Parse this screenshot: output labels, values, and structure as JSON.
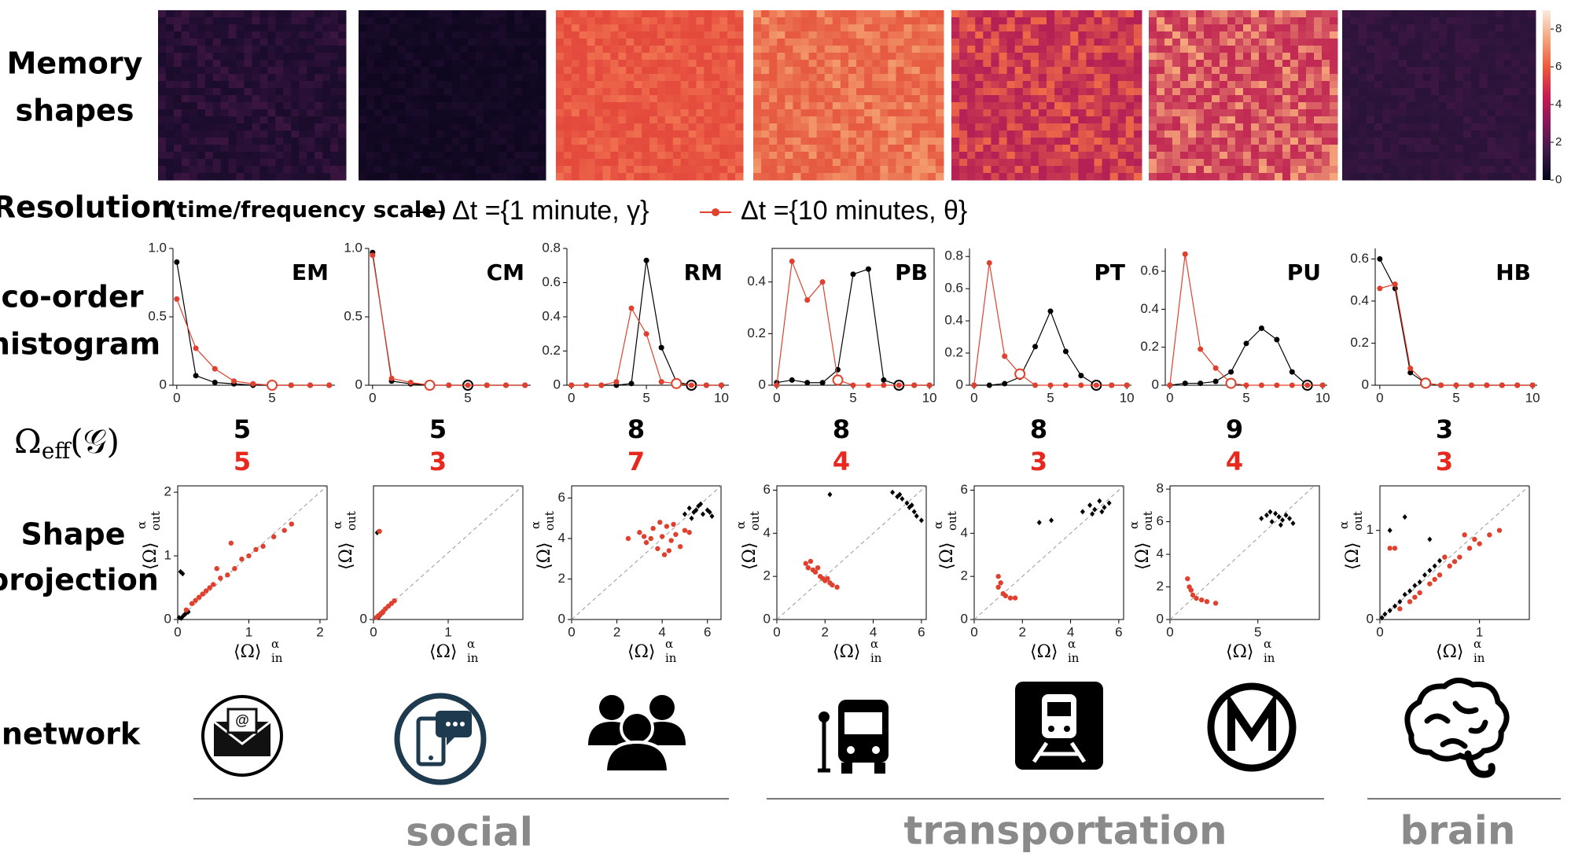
{
  "row_labels": {
    "memory": [
      "Memory",
      "shapes"
    ],
    "histogram": [
      "co-order",
      "histogram"
    ],
    "omega": {
      "symbol": "Ω",
      "subscript": "eff",
      "argument": "(𝒢)"
    },
    "projection": [
      "Shape",
      "projection"
    ],
    "network": "network"
  },
  "legend": {
    "title": "Resolution",
    "subtitle": "(time/frequency scale)",
    "entries": [
      {
        "name": "Δt ={1 minute, γ}",
        "color": "#000000"
      },
      {
        "name": "Δt ={10 minutes, θ}",
        "color": "#e0412f"
      }
    ]
  },
  "memory_shapes": {
    "panels": [
      {
        "colors": [
          "#1b0c2c",
          "#3a1540"
        ]
      },
      {
        "colors": [
          "#0f0720",
          "#1c0c2c"
        ]
      },
      {
        "colors": [
          "#e44a3c",
          "#f07050"
        ]
      },
      {
        "colors": [
          "#e65a42",
          "#f39a6c"
        ]
      },
      {
        "colors": [
          "#b52055",
          "#ef6a48"
        ]
      },
      {
        "colors": [
          "#c22a53",
          "#f6a57a"
        ]
      },
      {
        "colors": [
          "#2a1338",
          "#3d1744"
        ]
      }
    ],
    "colorbar": {
      "lim": [
        0,
        9
      ],
      "ticks": [
        0,
        2,
        4,
        6,
        8
      ],
      "colors": [
        "#03051a",
        "#3b1a4a",
        "#85175c",
        "#cb1b4f",
        "#ef5a3a",
        "#f6a47d",
        "#faebdd"
      ]
    }
  },
  "omega_eff": {
    "black": [
      5,
      5,
      8,
      8,
      8,
      9,
      3
    ],
    "red": [
      5,
      3,
      7,
      4,
      3,
      4,
      3
    ],
    "colors": [
      "#000000",
      "#e8281e"
    ]
  },
  "chart_data": [
    {
      "type": "line",
      "title": "EM",
      "x": [
        0,
        1,
        2,
        3,
        4,
        5,
        6,
        7,
        8
      ],
      "xlim": [
        -0.2,
        8.3
      ],
      "xticks": [
        0,
        5
      ],
      "ylim": [
        0,
        1.0
      ],
      "yticks": [
        0,
        0.5,
        {
          "value": 1,
          "label": "1.0"
        }
      ],
      "series": [
        {
          "color": "#000000",
          "values": [
            0.9,
            0.07,
            0.02,
            0.01,
            0,
            0,
            0,
            0,
            0
          ],
          "hollow_index": null
        },
        {
          "color": "#e0412f",
          "values": [
            0.63,
            0.27,
            0.12,
            0.03,
            0.01,
            0,
            0,
            0,
            0
          ],
          "hollow_index": 5
        }
      ]
    },
    {
      "type": "line",
      "title": "CM",
      "x": [
        0,
        1,
        2,
        3,
        4,
        5,
        6,
        7,
        8
      ],
      "xlim": [
        -0.2,
        8.3
      ],
      "xticks": [
        0,
        5
      ],
      "ylim": [
        0,
        1.0
      ],
      "yticks": [
        0,
        0.5,
        {
          "value": 1,
          "label": "1.0"
        }
      ],
      "series": [
        {
          "color": "#000000",
          "values": [
            0.97,
            0.03,
            0.01,
            0,
            0,
            0,
            0,
            0,
            0
          ],
          "hollow_index": 5
        },
        {
          "color": "#e0412f",
          "values": [
            0.95,
            0.05,
            0.02,
            0,
            0,
            0,
            0,
            0,
            0
          ],
          "hollow_index": 3
        }
      ]
    },
    {
      "type": "line",
      "title": "RM",
      "x": [
        0,
        1,
        2,
        3,
        4,
        5,
        6,
        7,
        8,
        9,
        10
      ],
      "xlim": [
        -0.3,
        10.5
      ],
      "xticks": [
        0,
        5,
        10
      ],
      "ylim": [
        0,
        0.8
      ],
      "yticks": [
        0,
        0.2,
        0.4,
        0.6,
        0.8
      ],
      "series": [
        {
          "color": "#000000",
          "values": [
            0,
            0,
            0,
            0,
            0.01,
            0.73,
            0.22,
            0.02,
            0,
            0,
            0
          ],
          "hollow_index": 8
        },
        {
          "color": "#e0412f",
          "values": [
            0,
            0,
            0,
            0.02,
            0.45,
            0.3,
            0.02,
            0.01,
            0,
            0,
            0
          ],
          "hollow_index": 7
        }
      ]
    },
    {
      "type": "line",
      "title": "PB",
      "x": [
        0,
        1,
        2,
        3,
        4,
        5,
        6,
        7,
        8,
        9,
        10
      ],
      "xlim": [
        -0.3,
        10.3
      ],
      "xticks": [
        0,
        5,
        10
      ],
      "ylim": [
        0,
        0.53
      ],
      "yticks": [
        0,
        0.2,
        0.4
      ],
      "series": [
        {
          "color": "#000000",
          "values": [
            0.01,
            0.02,
            0.01,
            0.01,
            0.06,
            0.43,
            0.45,
            0.02,
            0,
            0,
            0
          ],
          "hollow_index": 8
        },
        {
          "color": "#e0412f",
          "values": [
            0,
            0.48,
            0.33,
            0.4,
            0.02,
            0,
            0,
            0,
            0,
            0,
            0
          ],
          "hollow_index": 4
        }
      ]
    },
    {
      "type": "line",
      "title": "PT",
      "x": [
        0,
        1,
        2,
        3,
        4,
        5,
        6,
        7,
        8,
        9,
        10
      ],
      "xlim": [
        -0.3,
        10.3
      ],
      "xticks": [
        0,
        5,
        10
      ],
      "ylim": [
        0,
        0.85
      ],
      "yticks": [
        0,
        0.2,
        0.4,
        0.6,
        0.8
      ],
      "series": [
        {
          "color": "#000000",
          "values": [
            0,
            0,
            0.01,
            0.05,
            0.24,
            0.46,
            0.21,
            0.06,
            0,
            0,
            0
          ],
          "hollow_index": 8
        },
        {
          "color": "#e0412f",
          "values": [
            0,
            0.76,
            0.18,
            0.07,
            0,
            0,
            0,
            0,
            0,
            0,
            0
          ],
          "hollow_index": 3
        }
      ]
    },
    {
      "type": "line",
      "title": "PU",
      "x": [
        0,
        1,
        2,
        3,
        4,
        5,
        6,
        7,
        8,
        9,
        10
      ],
      "xlim": [
        -0.3,
        10.3
      ],
      "xticks": [
        0,
        5,
        10
      ],
      "ylim": [
        0,
        0.72
      ],
      "yticks": [
        0,
        0.2,
        0.4,
        0.6
      ],
      "series": [
        {
          "color": "#000000",
          "values": [
            0,
            0.01,
            0.01,
            0.02,
            0.07,
            0.22,
            0.3,
            0.24,
            0.07,
            0,
            0
          ],
          "hollow_index": 9
        },
        {
          "color": "#e0412f",
          "values": [
            0,
            0.69,
            0.19,
            0.09,
            0.01,
            0,
            0,
            0,
            0,
            0,
            0
          ],
          "hollow_index": 4
        }
      ]
    },
    {
      "type": "line",
      "title": "HB",
      "x": [
        0,
        1,
        2,
        3,
        4,
        5,
        6,
        7,
        8,
        9,
        10
      ],
      "xlim": [
        -0.3,
        10.3
      ],
      "xticks": [
        0,
        5,
        10
      ],
      "ylim": [
        0,
        0.65
      ],
      "yticks": [
        0,
        0.2,
        0.4,
        0.6
      ],
      "series": [
        {
          "color": "#000000",
          "values": [
            0.6,
            0.46,
            0.06,
            0.01,
            0,
            0,
            0,
            0,
            0,
            0,
            0
          ],
          "hollow_index": 3
        },
        {
          "color": "#e0412f",
          "values": [
            0.46,
            0.48,
            0.08,
            0.01,
            0,
            0,
            0,
            0,
            0,
            0,
            0
          ],
          "hollow_index": 3
        }
      ]
    },
    {
      "type": "scatter",
      "xlim": [
        0,
        2.1
      ],
      "ylim": [
        0,
        2.1
      ],
      "xticks": [
        0,
        1,
        2
      ],
      "yticks": [
        0,
        1,
        2
      ],
      "series": [
        {
          "color": "#000000",
          "x": [
            0.02,
            0.05,
            0.08,
            0.1,
            0.12,
            0.15,
            0.04,
            0.07
          ],
          "y": [
            0.03,
            0.02,
            0.06,
            0.08,
            0.1,
            0.12,
            0.75,
            0.72
          ]
        },
        {
          "color": "#e0412f",
          "x": [
            0.12,
            0.2,
            0.25,
            0.3,
            0.35,
            0.4,
            0.45,
            0.5,
            0.6,
            0.7,
            0.8,
            0.9,
            1.0,
            1.1,
            1.2,
            1.35,
            1.5,
            1.6,
            0.55,
            0.75
          ],
          "y": [
            0.15,
            0.25,
            0.3,
            0.35,
            0.4,
            0.45,
            0.5,
            0.55,
            0.65,
            0.7,
            0.8,
            0.95,
            1.0,
            1.1,
            1.15,
            1.3,
            1.4,
            1.5,
            0.8,
            1.2
          ]
        }
      ]
    },
    {
      "type": "scatter",
      "xlim": [
        0,
        2
      ],
      "ylim": [
        0,
        2
      ],
      "xticks": [
        0,
        1
      ],
      "yticks": [
        0
      ],
      "series": [
        {
          "color": "#000000",
          "x": [
            0.05,
            0.08,
            0.1,
            0.06
          ],
          "y": [
            1.3,
            0.05,
            0.08,
            0.03
          ]
        },
        {
          "color": "#e0412f",
          "x": [
            0.04,
            0.07,
            0.1,
            0.13,
            0.16,
            0.2,
            0.24,
            0.28,
            0.08,
            0.12,
            0.06
          ],
          "y": [
            0.03,
            0.06,
            0.09,
            0.12,
            0.16,
            0.2,
            0.24,
            0.28,
            1.32,
            0.1,
            0.05
          ]
        }
      ]
    },
    {
      "type": "scatter",
      "xlim": [
        0,
        6.6
      ],
      "ylim": [
        0,
        6.6
      ],
      "xticks": [
        0,
        2,
        4,
        6
      ],
      "yticks": [
        0,
        2,
        4,
        6
      ],
      "series": [
        {
          "color": "#000000",
          "x": [
            5.0,
            5.2,
            5.4,
            5.6,
            5.8,
            6.0,
            6.2,
            5.3,
            5.7,
            6.1,
            5.5
          ],
          "y": [
            5.2,
            5.5,
            5.3,
            5.6,
            5.2,
            5.4,
            5.1,
            5.0,
            5.7,
            5.3,
            5.4
          ]
        },
        {
          "color": "#e0412f",
          "x": [
            2.5,
            3.0,
            3.3,
            3.6,
            3.8,
            4.0,
            4.2,
            4.4,
            4.6,
            4.8,
            5.0,
            3.5,
            4.1,
            3.9,
            4.5,
            3.2,
            4.3,
            5.2
          ],
          "y": [
            4.0,
            4.3,
            3.8,
            4.5,
            3.5,
            4.1,
            4.6,
            3.9,
            4.2,
            3.6,
            4.4,
            4.0,
            3.2,
            4.8,
            4.7,
            4.1,
            3.4,
            4.3
          ]
        }
      ]
    },
    {
      "type": "scatter",
      "xlim": [
        0,
        6.2
      ],
      "ylim": [
        0,
        6.2
      ],
      "xticks": [
        0,
        2,
        4,
        6
      ],
      "yticks": [
        0,
        2,
        4,
        6
      ],
      "series": [
        {
          "color": "#000000",
          "x": [
            2.2,
            4.8,
            5.0,
            5.2,
            5.4,
            5.5,
            5.7,
            5.8,
            6.0,
            5.1,
            5.6
          ],
          "y": [
            5.8,
            5.9,
            5.7,
            5.6,
            5.4,
            5.2,
            5.0,
            4.8,
            4.6,
            5.8,
            5.3
          ]
        },
        {
          "color": "#e0412f",
          "x": [
            1.2,
            1.3,
            1.5,
            1.6,
            1.8,
            1.9,
            2.0,
            2.2,
            2.3,
            2.5,
            1.4,
            1.7,
            2.1
          ],
          "y": [
            2.6,
            2.4,
            2.3,
            2.2,
            2.0,
            1.9,
            1.8,
            1.7,
            1.6,
            1.5,
            2.7,
            2.4,
            1.9
          ]
        }
      ]
    },
    {
      "type": "scatter",
      "xlim": [
        0,
        6.2
      ],
      "ylim": [
        0,
        6.2
      ],
      "xticks": [
        0,
        2,
        4,
        6
      ],
      "yticks": [
        0,
        2,
        4,
        6
      ],
      "series": [
        {
          "color": "#000000",
          "x": [
            2.7,
            3.2,
            4.5,
            4.8,
            5.0,
            5.2,
            5.4,
            5.6,
            4.9,
            5.3
          ],
          "y": [
            4.5,
            4.6,
            5.0,
            5.3,
            5.1,
            5.5,
            5.2,
            5.4,
            4.9,
            5.0
          ]
        },
        {
          "color": "#e0412f",
          "x": [
            1.0,
            1.0,
            1.1,
            1.2,
            1.3,
            1.5,
            1.7
          ],
          "y": [
            2.0,
            1.5,
            1.7,
            1.2,
            1.1,
            1.0,
            1.0
          ]
        }
      ]
    },
    {
      "type": "scatter",
      "xlim": [
        0,
        8.5
      ],
      "ylim": [
        0,
        8.2
      ],
      "xticks": [
        0,
        5
      ],
      "yticks": [
        0,
        2,
        4,
        6,
        8
      ],
      "series": [
        {
          "color": "#000000",
          "x": [
            5.2,
            5.5,
            5.8,
            6.0,
            6.2,
            6.4,
            6.6,
            6.8,
            7.0,
            5.7,
            6.3
          ],
          "y": [
            6.2,
            6.4,
            6.0,
            6.5,
            6.3,
            6.1,
            6.4,
            6.2,
            5.9,
            6.6,
            5.8
          ]
        },
        {
          "color": "#e0412f",
          "x": [
            1.0,
            1.1,
            1.3,
            1.5,
            1.8,
            2.1,
            2.6,
            1.2
          ],
          "y": [
            2.5,
            2.0,
            1.5,
            1.3,
            1.2,
            1.1,
            1.0,
            1.8
          ]
        }
      ]
    },
    {
      "type": "scatter",
      "xlim": [
        0,
        1.5
      ],
      "ylim": [
        0,
        1.5
      ],
      "xticks": [
        0,
        1
      ],
      "yticks": [
        0,
        1
      ],
      "series": [
        {
          "color": "#000000",
          "x": [
            0.02,
            0.05,
            0.1,
            0.15,
            0.2,
            0.25,
            0.3,
            0.35,
            0.4,
            0.45,
            0.5,
            0.55,
            0.6,
            0.65,
            0.1,
            0.25,
            0.5
          ],
          "y": [
            0.02,
            0.06,
            0.1,
            0.15,
            0.2,
            0.28,
            0.32,
            0.38,
            0.42,
            0.5,
            0.55,
            0.6,
            0.66,
            0.7,
            1.0,
            1.15,
            0.9
          ]
        },
        {
          "color": "#e0412f",
          "x": [
            0.1,
            0.15,
            0.2,
            0.3,
            0.4,
            0.5,
            0.6,
            0.7,
            0.8,
            0.9,
            1.0,
            1.1,
            1.2,
            0.35,
            0.55,
            0.75,
            0.95,
            0.65,
            0.85
          ],
          "y": [
            0.8,
            0.8,
            0.12,
            0.2,
            0.3,
            0.4,
            0.5,
            0.6,
            0.7,
            0.8,
            0.85,
            0.95,
            1.0,
            0.25,
            0.45,
            0.65,
            0.9,
            0.7,
            0.95
          ]
        }
      ]
    }
  ],
  "groups": [
    {
      "label": "social"
    },
    {
      "label": "transportation"
    },
    {
      "label": "brain"
    }
  ]
}
